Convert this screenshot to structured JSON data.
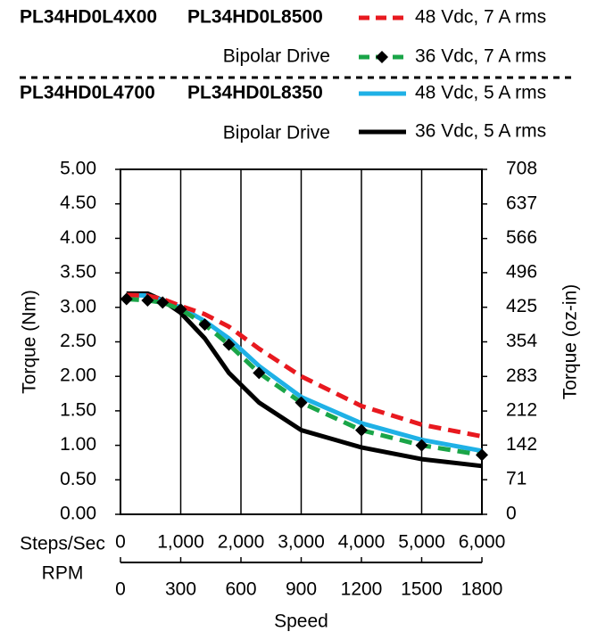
{
  "chart_data": {
    "type": "line",
    "headers": [
      {
        "models": [
          "PL34HD0L4X00",
          "PL34HD0L8500"
        ],
        "drive": "Bipolar Drive"
      },
      {
        "models": [
          "PL34HD0L4700",
          "PL34HD0L8350"
        ],
        "drive": "Bipolar Drive"
      }
    ],
    "xlabel": "Speed",
    "ylabel": "Torque (Nm)",
    "y2label": "Torque (oz-in)",
    "x_axis_name": "Steps/Sec",
    "x2_axis_name": "RPM",
    "x": [
      100,
      450,
      700,
      1000,
      1400,
      1800,
      2300,
      3000,
      4000,
      5000,
      6000
    ],
    "series": [
      {
        "name": "48 Vdc, 7 A rms",
        "color": "#e8191f",
        "dash": true,
        "marker": false,
        "values": [
          3.18,
          3.17,
          3.12,
          3.02,
          2.9,
          2.72,
          2.4,
          2.0,
          1.57,
          1.3,
          1.13
        ]
      },
      {
        "name": "36 Vdc, 7 A rms",
        "color": "#1aa548",
        "dash": true,
        "marker": true,
        "values": [
          3.12,
          3.1,
          3.07,
          2.97,
          2.75,
          2.46,
          2.05,
          1.62,
          1.22,
          1.0,
          0.86
        ]
      },
      {
        "name": "48 Vdc, 5 A rms",
        "color": "#1fb1e6",
        "dash": false,
        "marker": false,
        "values": [
          3.18,
          3.17,
          3.1,
          3.0,
          2.8,
          2.55,
          2.15,
          1.7,
          1.32,
          1.08,
          0.92
        ]
      },
      {
        "name": "36 Vdc, 5 A rms",
        "color": "#000000",
        "dash": false,
        "marker": false,
        "values": [
          3.2,
          3.2,
          3.1,
          2.92,
          2.55,
          2.05,
          1.62,
          1.22,
          0.97,
          0.8,
          0.7
        ]
      }
    ],
    "xlim": [
      0,
      6000
    ],
    "xticks": [
      0,
      {
        "value": 1000,
        "label": "1,000"
      },
      {
        "value": 2000,
        "label": "2,000"
      },
      {
        "value": 3000,
        "label": "3,000"
      },
      {
        "value": 4000,
        "label": "4,000"
      },
      {
        "value": 5000,
        "label": "5,000"
      },
      {
        "value": 6000,
        "label": "6,000"
      }
    ],
    "x2lim": [
      0,
      1800
    ],
    "x2ticks": [
      0,
      300,
      600,
      900,
      1200,
      1500,
      1800
    ],
    "ylim": [
      0,
      5
    ],
    "yticks": [
      {
        "value": 0,
        "label": "0.00"
      },
      {
        "value": 0.5,
        "label": "0.50"
      },
      {
        "value": 1,
        "label": "1.00"
      },
      {
        "value": 1.5,
        "label": "1.50"
      },
      {
        "value": 2,
        "label": "2.00"
      },
      {
        "value": 2.5,
        "label": "2.50"
      },
      {
        "value": 3,
        "label": "3.00"
      },
      {
        "value": 3.5,
        "label": "3.50"
      },
      {
        "value": 4,
        "label": "4.00"
      },
      {
        "value": 4.5,
        "label": "4.50"
      },
      {
        "value": 5,
        "label": "5.00"
      }
    ],
    "y2lim": [
      0,
      708
    ],
    "y2ticks": [
      0,
      71,
      142,
      212,
      283,
      354,
      425,
      496,
      566,
      637,
      708
    ],
    "grid": true
  }
}
